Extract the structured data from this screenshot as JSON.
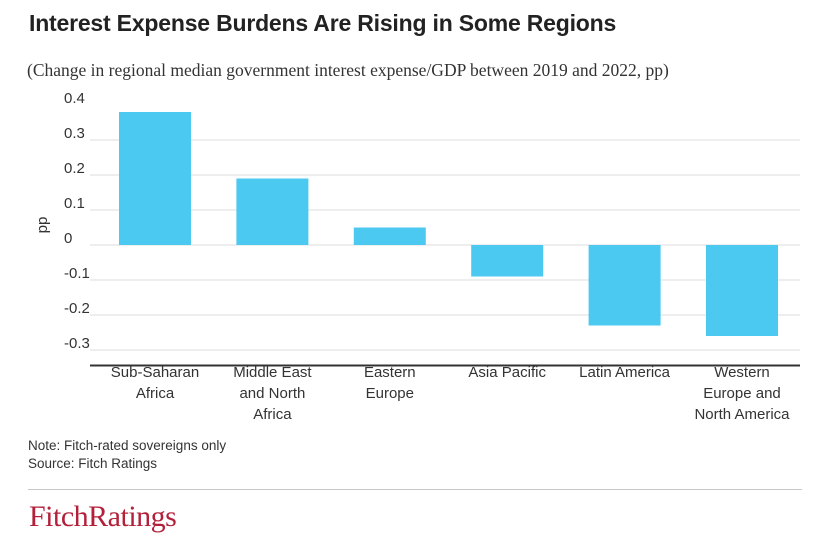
{
  "title": "Interest Expense Burdens Are Rising in Some Regions",
  "subtitle": "(Change in regional median government interest expense/GDP between 2019 and 2022, pp)",
  "notes": {
    "note": "Note: Fitch-rated sovereigns only",
    "source": "Source: Fitch Ratings"
  },
  "logo": "FitchRatings",
  "colors": {
    "bar": "#4cc9f0",
    "grid": "#dddddd",
    "axis": "#333333"
  },
  "chart_data": {
    "type": "bar",
    "title": "Interest Expense Burdens Are Rising in Some Regions",
    "subtitle": "(Change in regional median government interest expense/GDP between 2019 and 2022, pp)",
    "xlabel": "",
    "ylabel": "pp",
    "ylim": [
      -0.33,
      0.4
    ],
    "yticks": [
      0.4,
      0.3,
      0.2,
      0.1,
      0,
      -0.1,
      -0.2,
      -0.3
    ],
    "ytick_labels": [
      "0.4",
      "0.3",
      "0.2",
      "0.1",
      "0",
      "-0.1",
      "-0.2",
      "-0.3"
    ],
    "grid": true,
    "categories": [
      [
        "Sub-Saharan",
        "Africa"
      ],
      [
        "Middle East",
        "and North",
        "Africa"
      ],
      [
        "Eastern",
        "Europe"
      ],
      [
        "Asia Pacific"
      ],
      [
        "Latin America"
      ],
      [
        "Western",
        "Europe and",
        "North America"
      ]
    ],
    "values": [
      0.38,
      0.19,
      0.05,
      -0.09,
      -0.23,
      -0.26
    ]
  }
}
